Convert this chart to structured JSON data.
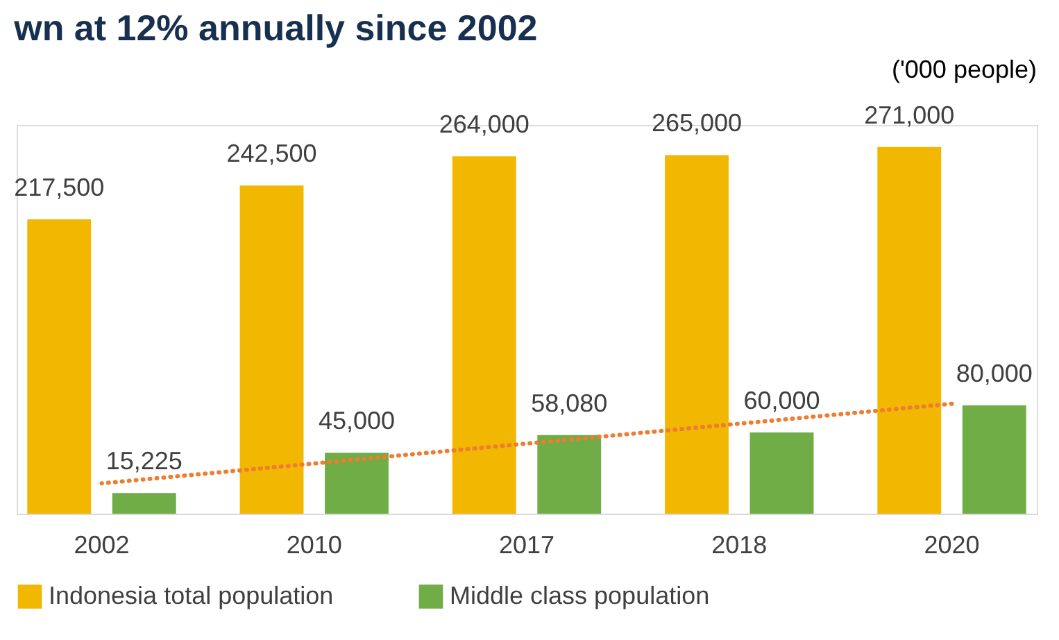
{
  "chart_data": {
    "type": "bar",
    "title": "wn at 12% annually since 2002",
    "annotations": [
      "('000 people)"
    ],
    "categories": [
      "2002",
      "2010",
      "2017",
      "2018",
      "2020"
    ],
    "series": [
      {
        "name": "Indonesia total population",
        "color": "#f2b700",
        "values": [
          217500,
          242500,
          264000,
          265000,
          271000
        ],
        "value_labels": [
          "217,500",
          "242,500",
          "264,000",
          "265,000",
          "271,000"
        ]
      },
      {
        "name": "Middle class population",
        "color": "#70ad47",
        "values": [
          15225,
          45000,
          58080,
          60000,
          80000
        ],
        "value_labels": [
          "15,225",
          "45,000",
          "58,080",
          "60,000",
          "80,000"
        ]
      },
      {
        "type": "line",
        "color": "#ed7d31",
        "line_style": "dotted",
        "values": [
          22400,
          37100,
          51800,
          66500,
          81200
        ]
      }
    ],
    "legend": "bottom",
    "grid": false,
    "tick_labels": "x"
  }
}
